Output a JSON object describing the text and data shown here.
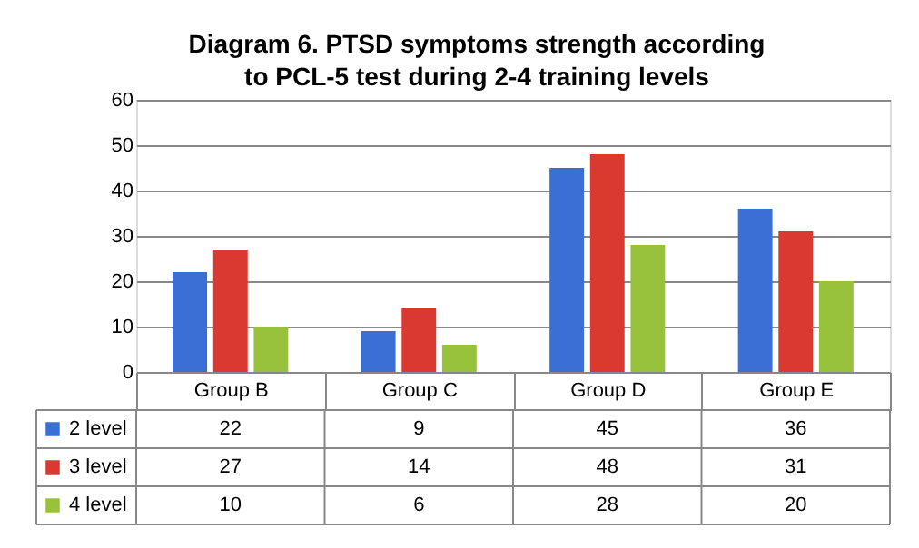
{
  "chart_data": {
    "type": "bar",
    "title": "Diagram 6. PTSD symptoms strength according to PCL-5 test during 2-4 training levels",
    "categories": [
      "Group B",
      "Group C",
      "Group D",
      "Group E"
    ],
    "series": [
      {
        "name": "2 level",
        "color": "#3c6fd6",
        "values": [
          22,
          9,
          45,
          36
        ]
      },
      {
        "name": "3 level",
        "color": "#d9392e",
        "values": [
          27,
          14,
          48,
          31
        ]
      },
      {
        "name": "4 level",
        "color": "#98c23c",
        "values": [
          10,
          6,
          28,
          20
        ]
      }
    ],
    "ylim": [
      0,
      60
    ],
    "yticks": [
      0,
      10,
      20,
      30,
      40,
      50,
      60
    ],
    "grid": "y",
    "legend": "bottom",
    "data_labels": true
  }
}
